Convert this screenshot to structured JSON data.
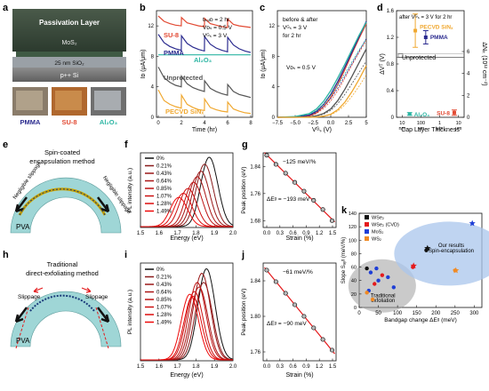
{
  "panel_letters": [
    "a",
    "b",
    "c",
    "d",
    "e",
    "f",
    "g",
    "h",
    "i",
    "j",
    "k"
  ],
  "panel_a": {
    "layers": [
      "Passivation Layer",
      "MoS₂",
      "25 nm SiO₂",
      "p++ Si"
    ],
    "photo_labels": [
      "PMMA",
      "SU-8",
      "Al₂O₃"
    ]
  },
  "panel_e": {
    "title_line1": "Spin-coated",
    "title_line2": "encapsulation method",
    "slip_left": "Negligible slippage",
    "slip_right": "Negligible slippage",
    "substrate": "PVA"
  },
  "panel_h": {
    "title_line1": "Traditional",
    "title_line2": "direct-exfoliating method",
    "slip_left": "Slippage",
    "slip_right": "Slippage",
    "substrate": "PVA"
  },
  "colors": {
    "su8": "#e24a33",
    "pmma": "#2b2b8f",
    "al2o3": "#2bb5a3",
    "unprotected": "#555555",
    "pecvd": "#f0a830",
    "wse2": "#111111",
    "wse2cvd": "#e41a1c",
    "mos2": "#1f3fd6",
    "ws2": "#f08a24",
    "fit": "#e41a1c"
  },
  "chart_data": [
    {
      "panel": "b",
      "type": "line",
      "xlabel": "Time (hr)",
      "ylabel": "Iᴅ (μA/μm)",
      "xlim": [
        0,
        8
      ],
      "ylim": [
        0,
        14
      ],
      "xticks": [
        "0",
        "2",
        "4",
        "6",
        "8"
      ],
      "yticks": [
        "0",
        "4",
        "8",
        "12"
      ],
      "conditions": [
        "tₕₒₗᴅ = 2 hr",
        "Vᴅₛ = 0.5 V",
        "Vᴳₛ = 3 V"
      ],
      "series": [
        {
          "name": "SU-8",
          "color_key": "su8",
          "t": [
            0,
            0.5,
            1,
            1.5,
            1.99,
            2.01,
            2.5,
            3,
            3.5,
            3.99,
            4.01,
            4.5,
            5,
            5.5,
            5.99,
            6.01,
            6.5,
            7,
            7.5,
            8
          ],
          "v": [
            13.3,
            12.6,
            12.3,
            12.1,
            12.0,
            13.1,
            12.4,
            12.2,
            12.0,
            11.9,
            13.0,
            12.3,
            12.1,
            11.9,
            11.8,
            12.9,
            12.2,
            12.0,
            11.9,
            11.8
          ]
        },
        {
          "name": "PMMA",
          "color_key": "pmma",
          "t": [
            0,
            0.5,
            1,
            1.5,
            1.99,
            2.01,
            2.5,
            3,
            3.5,
            3.99,
            4.01,
            4.5,
            5,
            5.5,
            5.99,
            6.01,
            6.5,
            7,
            7.5,
            8
          ],
          "v": [
            10.9,
            9.8,
            9.3,
            9.0,
            8.8,
            10.7,
            9.7,
            9.2,
            8.9,
            8.7,
            10.6,
            9.6,
            9.1,
            8.8,
            8.6,
            10.5,
            9.5,
            9.0,
            8.7,
            8.5
          ]
        },
        {
          "name": "Al₂O₃",
          "color_key": "al2o3",
          "t": [
            0,
            2,
            4,
            6,
            8
          ],
          "v": [
            8.2,
            8.2,
            8.2,
            8.2,
            8.2
          ]
        },
        {
          "name": "Unprotected",
          "color_key": "unprotected",
          "t": [
            0,
            0.5,
            1,
            1.5,
            1.99,
            2.01,
            2.5,
            3,
            3.5,
            3.99,
            4.01,
            4.5,
            5,
            5.5,
            5.99,
            6.01,
            6.5,
            7,
            7.5,
            8
          ],
          "v": [
            6.6,
            5.2,
            4.6,
            4.2,
            4.0,
            5.4,
            4.4,
            3.9,
            3.6,
            3.4,
            4.8,
            3.8,
            3.4,
            3.1,
            2.9,
            4.3,
            3.4,
            3.0,
            2.8,
            2.6
          ]
        },
        {
          "name": "PECVD SiNₓ",
          "color_key": "pecvd",
          "t": [
            0,
            0.5,
            1,
            1.5,
            1.99,
            2.01,
            2.5,
            3,
            3.5,
            3.99,
            4.01,
            4.5,
            5,
            5.5,
            5.99,
            6.01,
            6.5,
            7,
            7.5,
            8
          ],
          "v": [
            3.6,
            2.2,
            1.7,
            1.4,
            1.2,
            2.9,
            1.7,
            1.3,
            1.0,
            0.9,
            2.4,
            1.3,
            1.0,
            0.8,
            0.7,
            2.0,
            1.1,
            0.8,
            0.6,
            0.5
          ]
        }
      ]
    },
    {
      "panel": "c",
      "type": "line",
      "xlabel": "Vᴳₛ (V)",
      "ylabel": "Iᴅ (μA/μm)",
      "xlim": [
        -7.5,
        5
      ],
      "ylim": [
        0,
        14
      ],
      "xticks": [
        "−7.5",
        "−5.0",
        "−2.5",
        "0.0",
        "2.5",
        "5"
      ],
      "yticks": [
        "0",
        "4",
        "8",
        "12"
      ],
      "notes": [
        "before & after",
        "Vᴳₛ = 3 V",
        "for 2 hr",
        "Vᴅₛ = 0.5 V"
      ],
      "series": [
        {
          "name": "SU-8",
          "color_key": "su8",
          "x": [
            -7.5,
            -5,
            -3,
            -2,
            -1,
            0,
            1,
            2,
            3,
            4,
            5
          ],
          "y": [
            0,
            0.05,
            0.2,
            0.6,
            1.4,
            2.6,
            4.3,
            6.3,
            8.4,
            10.4,
            12.3
          ]
        },
        {
          "name": "PMMA",
          "color_key": "pmma",
          "x": [
            -7.5,
            -5,
            -3,
            -2,
            -1,
            0,
            1,
            2,
            3,
            4,
            5
          ],
          "y": [
            0,
            0.05,
            0.3,
            0.8,
            1.7,
            3.0,
            4.7,
            6.6,
            8.6,
            10.6,
            12.6
          ]
        },
        {
          "name": "Al₂O₃",
          "color_key": "al2o3",
          "x": [
            -7.5,
            -5,
            -3,
            -2,
            -1,
            0,
            1,
            2,
            3,
            4,
            5
          ],
          "y": [
            0,
            0.1,
            0.5,
            1.1,
            2.1,
            3.5,
            5.2,
            7.0,
            8.9,
            10.8,
            12.5
          ]
        },
        {
          "name": "Unprotected",
          "color_key": "unprotected",
          "x": [
            -7.5,
            -5,
            -3,
            -2,
            -1,
            0,
            1,
            2,
            3,
            4,
            5
          ],
          "y": [
            0,
            0,
            0.05,
            0.2,
            0.5,
            1.1,
            2.2,
            3.7,
            5.4,
            7.2,
            9.0
          ]
        },
        {
          "name": "PECVD SiNₓ",
          "color_key": "pecvd",
          "x": [
            -7.5,
            -5,
            -3,
            -2,
            -1,
            0,
            1,
            2,
            3,
            4,
            5
          ],
          "y": [
            0,
            0,
            0,
            0.05,
            0.15,
            0.4,
            1.0,
            2.0,
            3.4,
            5.0,
            6.8
          ]
        }
      ]
    },
    {
      "panel": "d",
      "type": "scatter",
      "xlabel": "Cap Layer Thickness",
      "ylabel_left": "ΔVᵀ (V)",
      "ylabel_right": "ΔNᵢₜ (10¹² cm⁻²)",
      "ylim": [
        0,
        1.6
      ],
      "yticks": [
        "0",
        "0.4",
        "0.8",
        "1.2",
        "1.6"
      ],
      "y2ticks": [
        "0",
        "2",
        "4",
        "6"
      ],
      "xticks": [
        "10 nm",
        "100 nm",
        "1 μm",
        "10 μm"
      ],
      "condition": "after Vᴳₛ = 3 V for 2 hr",
      "unprotected_level": 0.9,
      "points": [
        {
          "name": "PECVD SiNₓ",
          "color_key": "pecvd",
          "thickness_nm": 50,
          "y": 1.3,
          "err_low": 1.05,
          "err_high": 1.55
        },
        {
          "name": "PMMA",
          "color_key": "pmma",
          "thickness_nm": 180,
          "y": 1.2,
          "err_low": 1.1,
          "err_high": 1.3
        },
        {
          "name": "Al₂O₃",
          "color_key": "al2o3",
          "thickness_nm": 25,
          "y": 0.05,
          "err_low": 0.03,
          "err_high": 0.07
        },
        {
          "name": "SU-8",
          "color_key": "su8",
          "thickness_nm": 6000,
          "y": 0.07,
          "err_low": 0.03,
          "err_high": 0.11
        }
      ],
      "unprotected_label": "Unprotected"
    },
    {
      "panel": "f",
      "type": "line",
      "xlabel": "Energy (eV)",
      "ylabel": "PL intensity (a.u.)",
      "xlim": [
        1.5,
        2.0
      ],
      "xticks": [
        "1.5",
        "1.6",
        "1.7",
        "1.8",
        "1.9",
        "2.0"
      ],
      "legend": [
        "0%",
        "0.21%",
        "0.43%",
        "0.64%",
        "0.85%",
        "1.07%",
        "1.28%",
        "1.49%"
      ],
      "peaks_eV": [
        1.875,
        1.85,
        1.83,
        1.81,
        1.79,
        1.76,
        1.735,
        1.71
      ],
      "amplitudes": [
        1.0,
        0.9,
        0.8,
        0.72,
        0.64,
        0.55,
        0.48,
        0.42
      ]
    },
    {
      "panel": "g",
      "type": "scatter",
      "xlabel": "Strain (%)",
      "ylabel": "Peak position (eV)",
      "xlim": [
        0,
        1.5
      ],
      "ylim": [
        1.66,
        1.88
      ],
      "xticks": [
        "0.0",
        "0.3",
        "0.6",
        "0.9",
        "1.2",
        "1.5"
      ],
      "yticks": [
        "1.68",
        "1.76",
        "1.84"
      ],
      "annotations": [
        "−125 meV/%",
        "ΔEᵍ = −193 meV"
      ],
      "x": [
        0,
        0.21,
        0.43,
        0.64,
        0.85,
        1.07,
        1.28,
        1.49
      ],
      "y": [
        1.873,
        1.846,
        1.82,
        1.793,
        1.767,
        1.74,
        1.713,
        1.68
      ]
    },
    {
      "panel": "i",
      "type": "line",
      "xlabel": "Energy (eV)",
      "ylabel": "PL intensity (a.u.)",
      "xlim": [
        1.5,
        2.0
      ],
      "xticks": [
        "1.5",
        "1.6",
        "1.7",
        "1.8",
        "1.9",
        "2.0"
      ],
      "legend": [
        "0%",
        "0.21%",
        "0.43%",
        "0.64%",
        "0.85%",
        "1.07%",
        "1.28%",
        "1.49%"
      ],
      "peaks_eV": [
        1.86,
        1.845,
        1.835,
        1.82,
        1.81,
        1.795,
        1.785,
        1.77
      ],
      "amplitudes": [
        1.0,
        0.85,
        0.95,
        0.8,
        0.85,
        0.75,
        0.7,
        0.72
      ]
    },
    {
      "panel": "j",
      "type": "scatter",
      "xlabel": "Strain (%)",
      "ylabel": "Peak position (eV)",
      "xlim": [
        0,
        1.5
      ],
      "ylim": [
        1.75,
        1.86
      ],
      "xticks": [
        "0.0",
        "0.3",
        "0.6",
        "0.9",
        "1.2",
        "1.5"
      ],
      "yticks": [
        "1.76",
        "1.80",
        "1.84"
      ],
      "annotations": [
        "−61 meV/%",
        "ΔEᵍ = −90 meV"
      ],
      "x": [
        0,
        0.21,
        0.43,
        0.64,
        0.85,
        1.07,
        1.28,
        1.49
      ],
      "y": [
        1.852,
        1.839,
        1.826,
        1.813,
        1.8,
        1.787,
        1.774,
        1.762
      ]
    },
    {
      "panel": "k",
      "type": "scatter",
      "xlabel": "Bandgap change ΔEᵍ (meV)",
      "ylabel": "Slope Sₐᵧᵍ (meV/%)",
      "xlim": [
        0,
        320
      ],
      "ylim": [
        0,
        140
      ],
      "xticks": [
        "0",
        "50",
        "100",
        "150",
        "200",
        "250",
        "300"
      ],
      "yticks": [
        "0",
        "20",
        "40",
        "60",
        "80",
        "100",
        "120",
        "140"
      ],
      "legend": [
        "WSe₂",
        "WSe₂ (CVD)",
        "MoS₂",
        "WS₂"
      ],
      "regions": [
        {
          "label_line1": "Traditional",
          "label_line2": "exfoliation"
        },
        {
          "label_line1": "Our results",
          "label_line2": "Spin-encapsulation"
        }
      ],
      "points": [
        {
          "series": "WSe₂",
          "x": 175,
          "y": 85
        },
        {
          "series": "WSe₂",
          "x": 20,
          "y": 58
        },
        {
          "series": "WSe₂ (CVD)",
          "x": 140,
          "y": 60
        },
        {
          "series": "WSe₂ (CVD)",
          "x": 60,
          "y": 48
        },
        {
          "series": "WSe₂ (CVD)",
          "x": 40,
          "y": 35
        },
        {
          "series": "MoS₂",
          "x": 30,
          "y": 52
        },
        {
          "series": "MoS₂",
          "x": 45,
          "y": 58
        },
        {
          "series": "MoS₂",
          "x": 50,
          "y": 40
        },
        {
          "series": "MoS₂",
          "x": 75,
          "y": 45
        },
        {
          "series": "MoS₂",
          "x": 90,
          "y": 30
        },
        {
          "series": "MoS₂",
          "x": 25,
          "y": 25
        },
        {
          "series": "WS₂",
          "x": 35,
          "y": 12
        },
        {
          "series": "WS₂",
          "x": 20,
          "y": 22
        },
        {
          "series": "WS₂",
          "x": 250,
          "y": 55
        }
      ],
      "highlighted": [
        {
          "series": "MoS₂",
          "x": 295,
          "y": 125,
          "marker": "star"
        },
        {
          "series": "WS₂",
          "x": 252,
          "y": 55,
          "marker": "star"
        },
        {
          "series": "WSe₂ (CVD)",
          "x": 142,
          "y": 62,
          "marker": "star"
        },
        {
          "series": "WSe₂",
          "x": 178,
          "y": 88,
          "marker": "star"
        }
      ]
    }
  ]
}
